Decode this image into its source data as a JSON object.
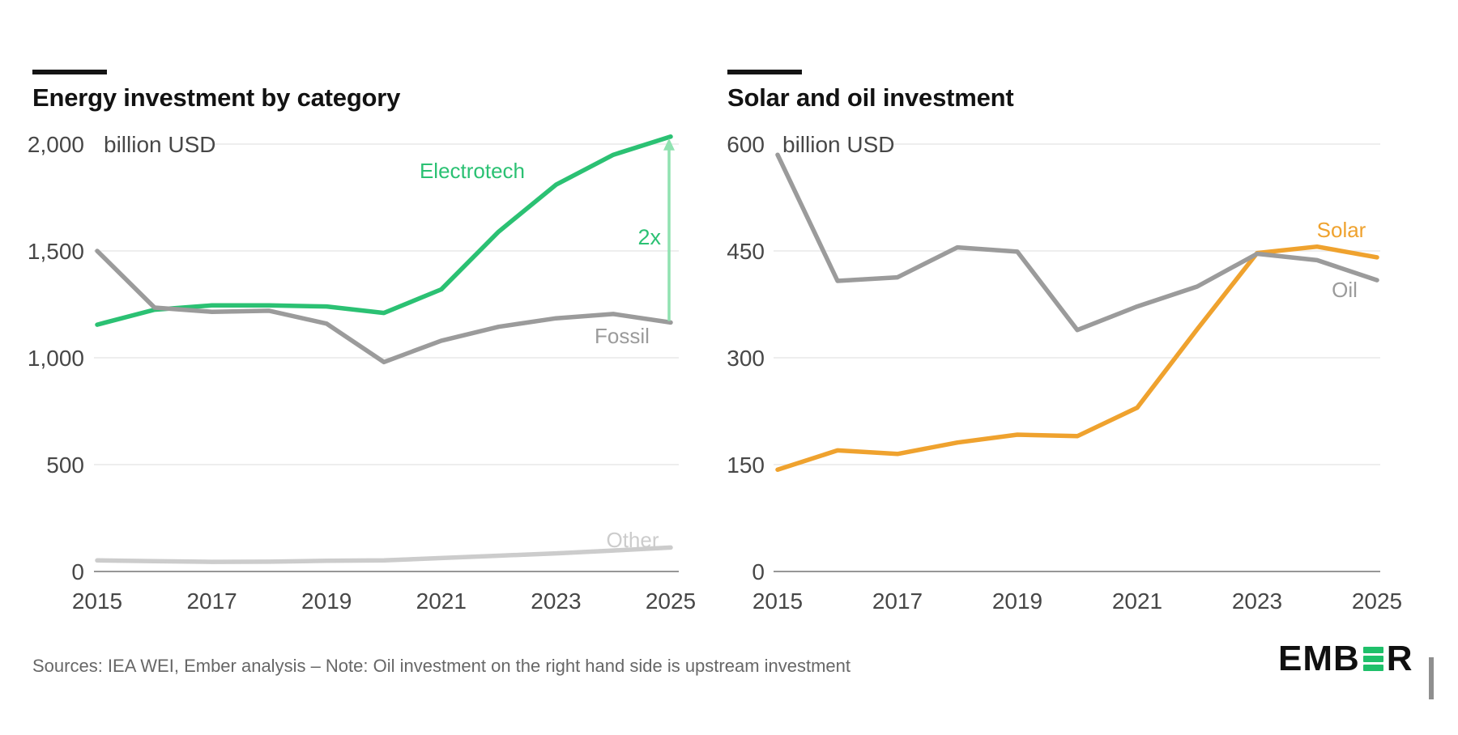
{
  "page": {
    "background": "#ffffff"
  },
  "chart_data": [
    {
      "type": "line",
      "title": "Energy investment by category",
      "ylabel": "billion USD",
      "x": [
        2015,
        2016,
        2017,
        2018,
        2019,
        2020,
        2021,
        2022,
        2023,
        2024,
        2025
      ],
      "x_tick_labels": [
        "2015",
        "2017",
        "2019",
        "2021",
        "2023",
        "2025"
      ],
      "ylim": [
        0,
        2000
      ],
      "yticks": [
        0,
        500,
        1000,
        1500,
        2000
      ],
      "ytick_labels": [
        "0",
        "500",
        "1,000",
        "1,500",
        "2,000"
      ],
      "grid": true,
      "legend": "inline-series-labels",
      "series": [
        {
          "name": "Electrotech",
          "color": "#2bc173",
          "values": [
            1155,
            1225,
            1245,
            1245,
            1240,
            1210,
            1320,
            1590,
            1810,
            1950,
            2035
          ]
        },
        {
          "name": "Fossil",
          "color": "#9b9b9b",
          "values": [
            1500,
            1235,
            1215,
            1220,
            1160,
            980,
            1080,
            1145,
            1185,
            1205,
            1165
          ]
        },
        {
          "name": "Other",
          "color": "#cccccc",
          "values": [
            52,
            48,
            45,
            46,
            50,
            52,
            63,
            74,
            85,
            98,
            112
          ]
        }
      ],
      "annotation": {
        "text": "2x",
        "text_color": "#2bc173",
        "arrow_color": "#90e2b1",
        "at_year": 2025,
        "from_value": 1165,
        "to_value": 2035
      }
    },
    {
      "type": "line",
      "title": "Solar and oil investment",
      "ylabel": "billion USD",
      "x": [
        2015,
        2016,
        2017,
        2018,
        2019,
        2020,
        2021,
        2022,
        2023,
        2024,
        2025
      ],
      "x_tick_labels": [
        "2015",
        "2017",
        "2019",
        "2021",
        "2023",
        "2025"
      ],
      "ylim": [
        0,
        600
      ],
      "yticks": [
        0,
        150,
        300,
        450,
        600
      ],
      "ytick_labels": [
        "0",
        "150",
        "300",
        "450",
        "600"
      ],
      "grid": true,
      "legend": "inline-series-labels",
      "series": [
        {
          "name": "Solar",
          "color": "#efa22e",
          "values": [
            143,
            170,
            165,
            181,
            192,
            190,
            230,
            340,
            447,
            456,
            441
          ]
        },
        {
          "name": "Oil",
          "color": "#9b9b9b",
          "values": [
            585,
            408,
            413,
            455,
            449,
            339,
            372,
            400,
            446,
            437,
            409
          ]
        }
      ]
    }
  ],
  "footer": {
    "source_note": "Sources: IEA WEI, Ember analysis – Note: Oil investment on the right hand side is upstream investment"
  },
  "logo": {
    "brand": "EMBER",
    "text_before_mark": "EMB",
    "text_after_mark": "R",
    "mark": "three-green-bars-E",
    "mark_color": "#1fc06a",
    "text_color": "#101010"
  }
}
